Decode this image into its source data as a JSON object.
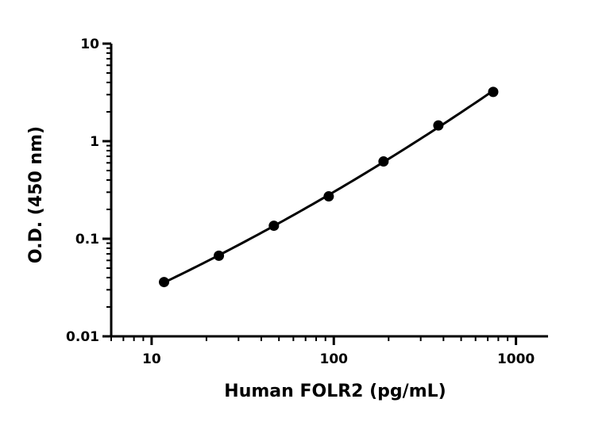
{
  "chart_data": {
    "type": "scatter",
    "xlabel": "Human FOLR2 (pg/mL)",
    "ylabel": "O.D. (450 nm)",
    "x_scale": "log",
    "y_scale": "log",
    "xlim": [
      6,
      1500
    ],
    "ylim": [
      0.01,
      10
    ],
    "x_ticks": [
      {
        "value": 10,
        "label": "10"
      },
      {
        "value": 100,
        "label": "100"
      },
      {
        "value": 1000,
        "label": "1000"
      }
    ],
    "y_ticks": [
      {
        "value": 0.01,
        "label": "0.01"
      },
      {
        "value": 0.1,
        "label": "0.1"
      },
      {
        "value": 1,
        "label": "1"
      },
      {
        "value": 10,
        "label": "10"
      }
    ],
    "grid": false,
    "legend": "none",
    "fit_curve": true,
    "series": [
      {
        "x": [
          11.7,
          23.4,
          46.9,
          93.8,
          187.5,
          375,
          750
        ],
        "y": [
          0.036,
          0.067,
          0.136,
          0.272,
          0.62,
          1.45,
          3.2
        ]
      }
    ],
    "colors": {
      "marker": "#000000",
      "line": "#000000",
      "axis": "#000000"
    }
  }
}
